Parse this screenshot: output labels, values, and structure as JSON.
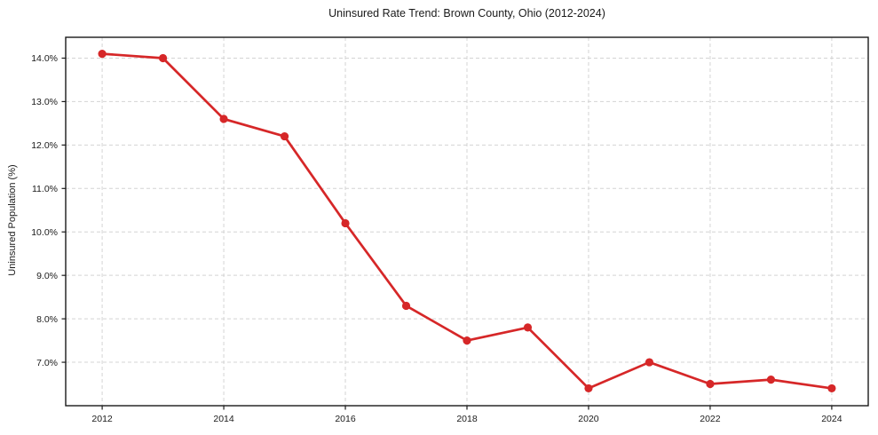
{
  "chart_data": {
    "type": "line",
    "title": "Uninsured Rate Trend: Brown County, Ohio (2012-2024)",
    "xlabel": "",
    "ylabel": "Uninsured Population (%)",
    "x": [
      2012,
      2013,
      2014,
      2015,
      2016,
      2017,
      2018,
      2019,
      2020,
      2021,
      2022,
      2023,
      2024
    ],
    "series": [
      {
        "name": "Uninsured Rate",
        "values": [
          14.1,
          14.0,
          12.6,
          12.2,
          10.2,
          8.3,
          7.5,
          7.8,
          6.4,
          7.0,
          6.5,
          6.6,
          6.4
        ]
      }
    ],
    "xticks": [
      2012,
      2014,
      2016,
      2018,
      2020,
      2022,
      2024
    ],
    "xtick_labels": [
      "2012",
      "2014",
      "2016",
      "2018",
      "2020",
      "2022",
      "2024"
    ],
    "yticks": [
      7,
      8,
      9,
      10,
      11,
      12,
      13,
      14
    ],
    "ytick_labels": [
      "7.0%",
      "8.0%",
      "9.0%",
      "10.0%",
      "11.0%",
      "12.0%",
      "13.0%",
      "14.0%"
    ],
    "xlim": [
      2011.4,
      2024.6
    ],
    "ylim": [
      6.0,
      14.48
    ],
    "grid": true,
    "legend": "none",
    "colors": {
      "line": "#d62728",
      "marker": "#d62728",
      "grid": "#d4d4d4",
      "spine": "#1a1a1a",
      "text": "#1a1a1a",
      "background": "#ffffff"
    }
  }
}
